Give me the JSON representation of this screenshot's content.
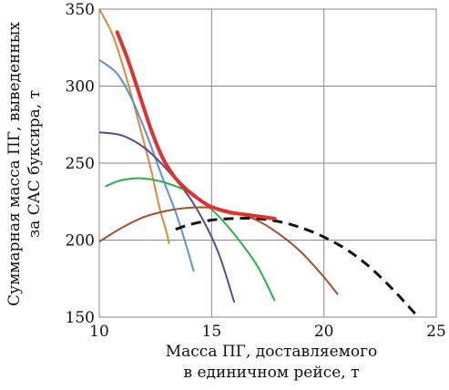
{
  "chart_data": {
    "type": "line",
    "xlabel": [
      "Масса ПГ, доставляемого",
      "в единичном рейсе, т"
    ],
    "ylabel": [
      "Суммарная масса ПГ, выведенных",
      "за САС буксира, т"
    ],
    "xlim": [
      10,
      25
    ],
    "ylim": [
      150,
      350
    ],
    "xticks": [
      "10",
      "15",
      "20",
      "25"
    ],
    "yticks": [
      "150",
      "200",
      "250",
      "300",
      "350"
    ],
    "grid": true,
    "series": [
      {
        "color": "#d98a3c",
        "style": "solid",
        "width": 2,
        "x": [
          10.0,
          10.6,
          11.2,
          11.8,
          12.3,
          12.7,
          13.0,
          13.1
        ],
        "y": [
          350,
          333,
          306,
          274,
          246,
          220,
          205,
          198
        ]
      },
      {
        "color": "#5b93d6",
        "style": "solid",
        "width": 2,
        "x": [
          10.0,
          10.8,
          11.5,
          12.2,
          12.8,
          13.4,
          13.8,
          14.2
        ],
        "y": [
          317,
          308,
          290,
          265,
          241,
          218,
          200,
          180
        ]
      },
      {
        "color": "#5c4a8e",
        "style": "solid",
        "width": 2,
        "x": [
          10.0,
          11.0,
          12.0,
          13.0,
          14.0,
          14.8,
          15.4,
          16.0
        ],
        "y": [
          270,
          268,
          260,
          246,
          228,
          208,
          188,
          160
        ]
      },
      {
        "color": "#2bb04a",
        "style": "solid",
        "width": 2,
        "x": [
          10.3,
          11.0,
          12.0,
          13.0,
          14.0,
          15.0,
          16.0,
          17.0,
          17.8
        ],
        "y": [
          235,
          239,
          240,
          237,
          231,
          220,
          204,
          184,
          161
        ]
      },
      {
        "color": "#a0522d",
        "style": "solid",
        "width": 2,
        "x": [
          10.0,
          11.0,
          12.0,
          13.0,
          14.0,
          15.0,
          16.0,
          17.0,
          18.0,
          19.0,
          20.0,
          20.6
        ],
        "y": [
          199,
          208,
          215,
          219,
          221,
          221,
          218,
          213,
          204,
          192,
          176,
          165
        ]
      },
      {
        "color": "#111111",
        "style": "dashed",
        "width": 3,
        "x": [
          13.4,
          14.0,
          15.0,
          16.0,
          17.0,
          18.0,
          19.0,
          20.0,
          21.0,
          22.0,
          23.0,
          23.7,
          24.2
        ],
        "y": [
          207,
          210,
          213,
          214,
          214,
          212,
          208,
          202,
          194,
          183,
          169,
          158,
          150
        ]
      },
      {
        "color": "#e03030",
        "style": "solid",
        "width": 4,
        "x": [
          10.8,
          11.3,
          11.8,
          12.3,
          12.8,
          13.3,
          13.8,
          14.3,
          14.8,
          15.3,
          15.8,
          16.3,
          16.8,
          17.3,
          17.8
        ],
        "y": [
          335,
          316,
          294,
          272,
          254,
          242,
          234,
          228,
          223,
          220,
          218,
          217,
          216,
          215,
          214
        ]
      }
    ]
  }
}
